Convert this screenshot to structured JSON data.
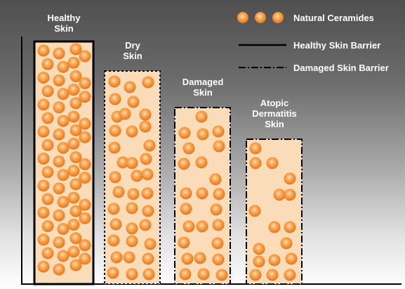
{
  "legend": {
    "ceramides_label": "Natural Ceramides",
    "healthy_barrier_label": "Healthy Skin Barrier",
    "damaged_barrier_label": "Damaged Skin Barrier"
  },
  "columns": [
    {
      "label": "Healthy\nSkin",
      "border": "healthy",
      "ceramide_density": "high"
    },
    {
      "label": "Dry\nSkin",
      "border": "damaged",
      "ceramide_density": "medium-high"
    },
    {
      "label": "Damaged\nSkin",
      "border": "damaged",
      "ceramide_density": "medium"
    },
    {
      "label": "Atopic\nDermatitis\nSkin",
      "border": "damaged",
      "ceramide_density": "low"
    }
  ],
  "colors": {
    "background_top": "#4f4f4f",
    "background_bottom": "#ffffff",
    "column_fill": "#fbdcb8",
    "ceramide_outer": "#ee7a17",
    "ceramide_inner": "#f7b36a",
    "label_text": "#ffffff",
    "border": "#000000"
  }
}
